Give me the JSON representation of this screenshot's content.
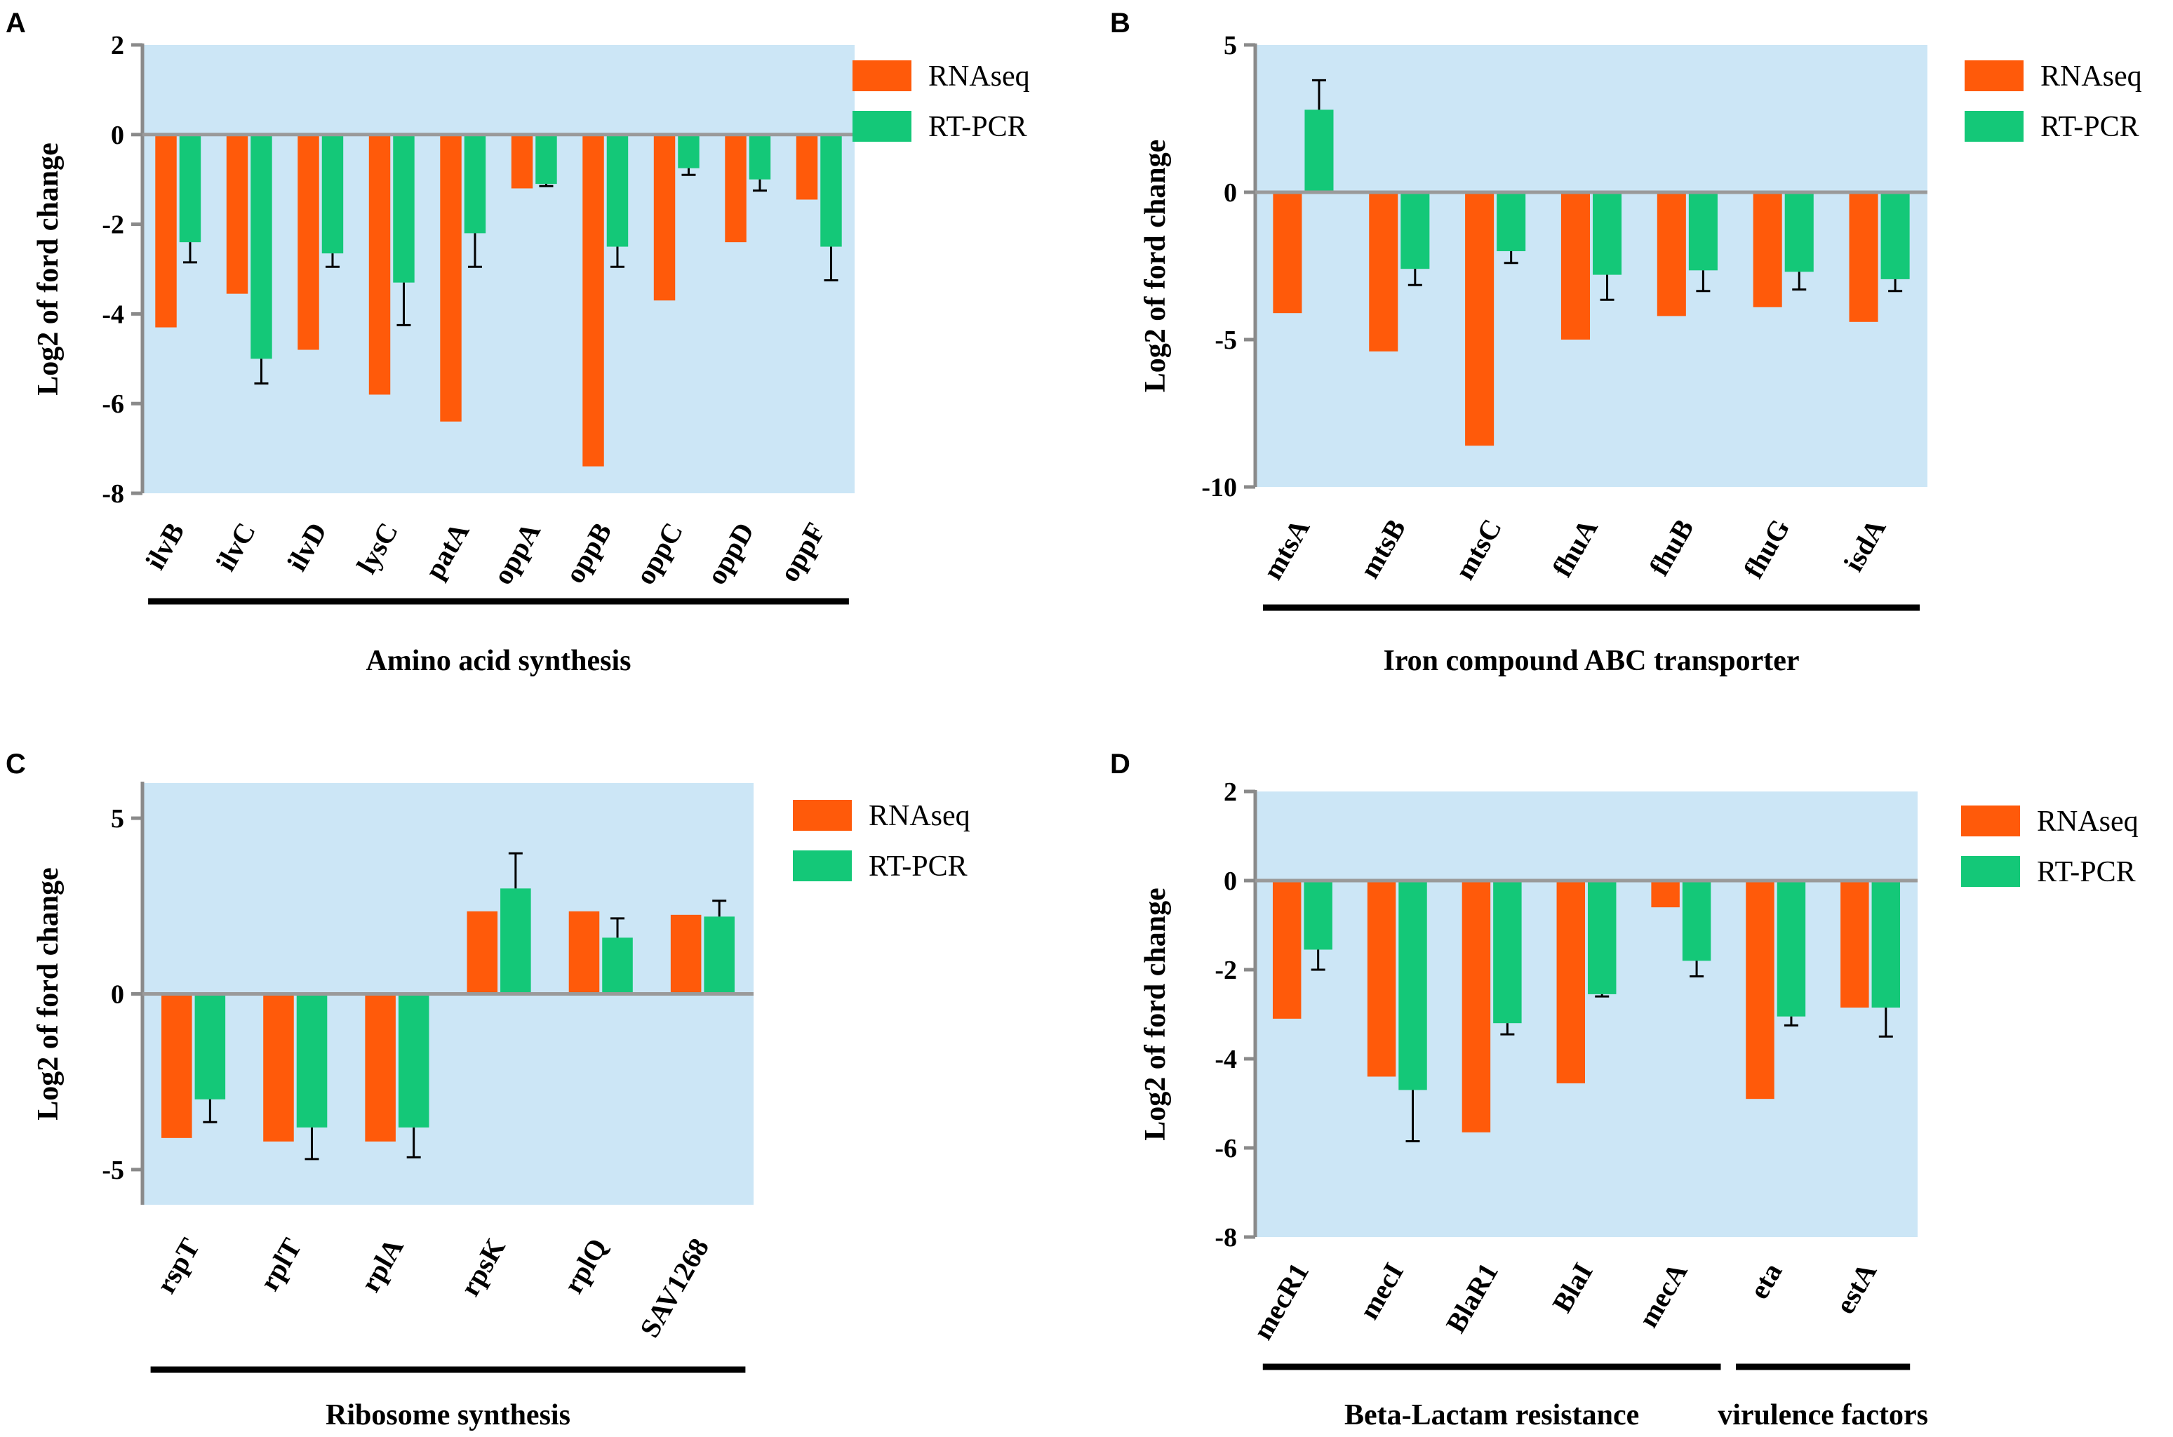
{
  "colors": {
    "rnaseq": "#ff5a0a",
    "rtpcr": "#14c878",
    "plot_bg": "#cce6f6",
    "axis": "#8a8a8a",
    "zero_line": "#9a9a9a",
    "error_bar": "#000000",
    "group_bar": "#000000"
  },
  "chart_data": [
    {
      "panel": "A",
      "type": "bar",
      "ylabel": "Log2 of ford change",
      "ylim": [
        -8,
        2
      ],
      "yticks": [
        2,
        0,
        -2,
        -4,
        -6,
        -8
      ],
      "ytick_labels": [
        "2",
        "0",
        "-2",
        "-4",
        "-6",
        "-8"
      ],
      "categories": [
        "ilvB",
        "ilvC",
        "ilvD",
        "lysC",
        "patA",
        "oppA",
        "oppB",
        "oppC",
        "oppD",
        "oppF"
      ],
      "series": [
        {
          "name": "RNAseq",
          "values": [
            -4.3,
            -3.55,
            -4.8,
            -5.8,
            -6.4,
            -1.2,
            -7.4,
            -3.7,
            -2.4,
            -1.45
          ],
          "errors": [
            0,
            0,
            0,
            0,
            0,
            0,
            0,
            0,
            0,
            0
          ]
        },
        {
          "name": "RT-PCR",
          "values": [
            -2.4,
            -5.0,
            -2.65,
            -3.3,
            -2.2,
            -1.1,
            -2.5,
            -0.75,
            -1.0,
            -2.5
          ],
          "errors": [
            0.45,
            0.55,
            0.3,
            0.95,
            0.75,
            0.05,
            0.45,
            0.15,
            0.25,
            0.75
          ]
        }
      ],
      "groups": [
        {
          "label": "Amino acid synthesis",
          "start": 0,
          "end": 9
        }
      ]
    },
    {
      "panel": "B",
      "type": "bar",
      "ylabel": "Log2 of ford change",
      "ylim": [
        -10,
        5
      ],
      "yticks": [
        5,
        0,
        -5,
        -10
      ],
      "ytick_labels": [
        "5",
        "0",
        "-5",
        "-10"
      ],
      "categories": [
        "mtsA",
        "mtsB",
        "mtsC",
        "fhuA",
        "fhuB",
        "fhuG",
        "isdA"
      ],
      "series": [
        {
          "name": "RNAseq",
          "values": [
            -4.1,
            -5.4,
            -8.6,
            -5.0,
            -4.2,
            -3.9,
            -4.4
          ],
          "errors": [
            0,
            0,
            0,
            0,
            0,
            0,
            0
          ]
        },
        {
          "name": "RT-PCR",
          "values": [
            2.8,
            -2.6,
            -2.0,
            -2.8,
            -2.65,
            -2.7,
            -2.95
          ],
          "errors": [
            1.0,
            0.55,
            0.4,
            0.85,
            0.7,
            0.6,
            0.4
          ]
        }
      ],
      "groups": [
        {
          "label": "Iron compound ABC transporter",
          "start": 0,
          "end": 6
        }
      ]
    },
    {
      "panel": "C",
      "type": "bar",
      "ylabel": "Log2 of ford change",
      "ylim": [
        -6,
        6
      ],
      "yticks": [
        5,
        0,
        -5
      ],
      "ytick_labels": [
        "5",
        "0",
        "-5"
      ],
      "categories": [
        "rspT",
        "rplT",
        "rplA",
        "rpsK",
        "rplQ",
        "SAV1268"
      ],
      "series": [
        {
          "name": "RNAseq",
          "values": [
            -4.1,
            -4.2,
            -4.2,
            2.35,
            2.35,
            2.25
          ],
          "errors": [
            0,
            0,
            0,
            0,
            0,
            0
          ]
        },
        {
          "name": "RT-PCR",
          "values": [
            -3.0,
            -3.8,
            -3.8,
            3.0,
            1.6,
            2.2
          ],
          "errors": [
            0.65,
            0.9,
            0.85,
            1.0,
            0.55,
            0.45
          ]
        }
      ],
      "groups": [
        {
          "label": "Ribosome synthesis",
          "start": 0,
          "end": 5
        }
      ]
    },
    {
      "panel": "D",
      "type": "bar",
      "ylabel": "Log2 of ford change",
      "ylim": [
        -8,
        2
      ],
      "yticks": [
        2,
        0,
        -2,
        -4,
        -6,
        -8
      ],
      "ytick_labels": [
        "2",
        "0",
        "-2",
        "-4",
        "-6",
        "-8"
      ],
      "categories": [
        "mecR1",
        "mecI",
        "BlaR1",
        "BlaI",
        "mecA",
        "eta",
        "estA"
      ],
      "series": [
        {
          "name": "RNAseq",
          "values": [
            -3.1,
            -4.4,
            -5.65,
            -4.55,
            -0.6,
            -4.9,
            -2.85
          ],
          "errors": [
            0,
            0,
            0,
            0,
            0,
            0,
            0
          ]
        },
        {
          "name": "RT-PCR",
          "values": [
            -1.55,
            -4.7,
            -3.2,
            -2.55,
            -1.8,
            -3.05,
            -2.85
          ],
          "errors": [
            0.45,
            1.15,
            0.25,
            0.05,
            0.35,
            0.2,
            0.65
          ]
        }
      ],
      "groups": [
        {
          "label": "Beta-Lactam resistance",
          "start": 0,
          "end": 4
        },
        {
          "label": "virulence factors",
          "start": 5,
          "end": 6
        }
      ]
    }
  ]
}
